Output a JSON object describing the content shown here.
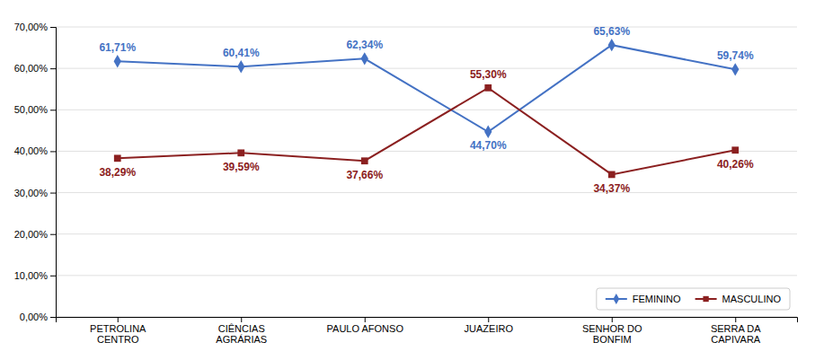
{
  "chart_data": {
    "type": "line",
    "categories": [
      "PETROLINA\nCENTRO",
      "CIÊNCIAS\nAGRÁRIAS",
      "PAULO AFONSO",
      "JUAZEIRO",
      "SENHOR DO\nBONFIM",
      "SERRA DA\nCAPIVARA"
    ],
    "series": [
      {
        "name": "FEMININO",
        "color": "#4472C4",
        "marker": "diamond",
        "values": [
          61.71,
          60.41,
          62.34,
          44.7,
          65.63,
          59.74
        ],
        "value_labels": [
          "61,71%",
          "60,41%",
          "62,34%",
          "44,70%",
          "65,63%",
          "59,74%"
        ]
      },
      {
        "name": "MASCULINO",
        "color": "#8B2020",
        "marker": "square",
        "values": [
          38.29,
          39.59,
          37.66,
          55.3,
          34.37,
          40.26
        ],
        "value_labels": [
          "38,29%",
          "39,59%",
          "37,66%",
          "55,30%",
          "34,37%",
          "40,26%"
        ]
      }
    ],
    "ylim": [
      0,
      70
    ],
    "yticks": [
      {
        "value": 0,
        "label": "0,00%"
      },
      {
        "value": 10,
        "label": "10,00%"
      },
      {
        "value": 20,
        "label": "20,00%"
      },
      {
        "value": 30,
        "label": "30,00%"
      },
      {
        "value": 40,
        "label": "40,00%"
      },
      {
        "value": 50,
        "label": "50,00%"
      },
      {
        "value": 60,
        "label": "60,00%"
      },
      {
        "value": 70,
        "label": "70,00%"
      }
    ],
    "grid": true,
    "legend": "lower right",
    "data_labels": true
  }
}
